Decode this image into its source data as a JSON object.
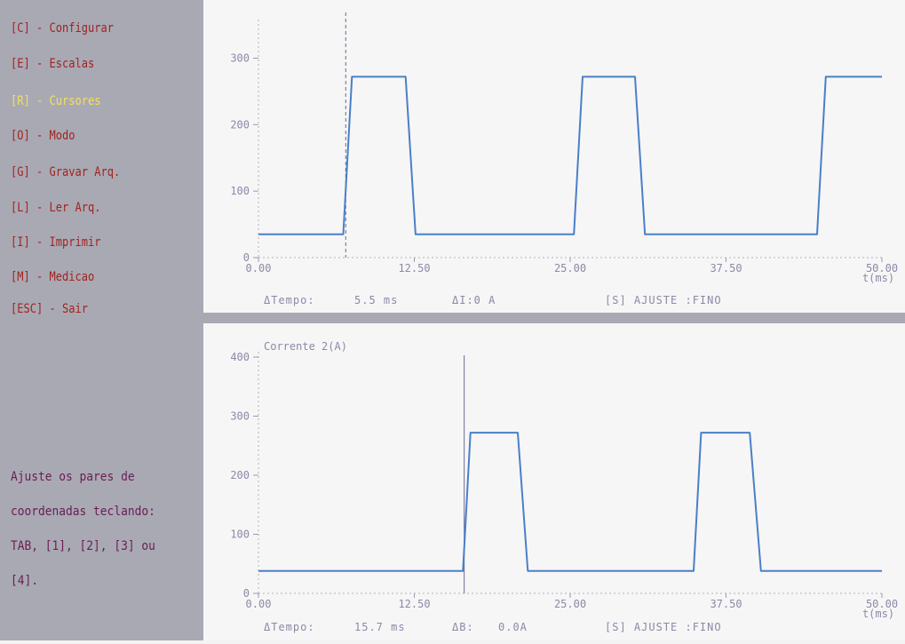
{
  "menu": {
    "items": [
      {
        "key": "[C]",
        "label": "Configurar",
        "text": "[C] - Configurar",
        "active": false
      },
      {
        "key": "[E]",
        "label": "Escalas",
        "text": "[E] - Escalas",
        "active": false
      },
      {
        "key": "[R]",
        "label": "Cursores",
        "text": "[R] - Cursores",
        "active": true
      },
      {
        "key": "[O]",
        "label": "Modo",
        "text": "[O] - Modo",
        "active": false
      },
      {
        "key": "[G]",
        "label": "Gravar Arq.",
        "text": "[G] - Gravar Arq.",
        "active": false
      },
      {
        "key": "[L]",
        "label": "Ler Arq.",
        "text": "[L] - Ler Arq.",
        "active": false
      },
      {
        "key": "[I]",
        "label": "Imprimir",
        "text": "[I] - Imprimir",
        "active": false
      },
      {
        "key": "[M]",
        "label": "Medicao",
        "text": "[M] - Medicao",
        "active": false
      },
      {
        "key": "[ESC]",
        "label": "Sair",
        "text": "[ESC] - Sair",
        "active": false
      }
    ]
  },
  "help": {
    "lines": [
      "Ajuste os pares de",
      "coordenadas teclando:",
      "TAB, [1], [2], [3] ou",
      "[4]."
    ]
  },
  "colors": {
    "sidebar_bg": "#a9a9b4",
    "menu_text": "#a0241f",
    "menu_active": "#f0e060",
    "help_text": "#6a1d55",
    "trace": "#4a7fc8",
    "axis_text": "#8a8aa8",
    "cursor": "#6a6a90"
  },
  "panel1": {
    "title": "",
    "xunit": "t(ms)",
    "status": {
      "dt_label": "ΔTempo:",
      "dt_value": "5.5 ms",
      "dv_label": "ΔI:0 A",
      "mode": "[S] AJUSTE :FINO"
    },
    "chart_data": {
      "type": "line",
      "xlim": [
        0,
        50
      ],
      "ylim": [
        0,
        350
      ],
      "xticks": [
        "0.00",
        "12.50",
        "25.00",
        "37.50",
        "50.00"
      ],
      "yticks": [
        "0",
        "100",
        "200",
        "300"
      ],
      "cursor_x": 7.0,
      "series": [
        {
          "x": [
            0,
            6.8,
            7.5,
            11.8,
            12.6,
            25.3,
            26.0,
            30.2,
            31.0,
            44.8,
            45.5,
            50
          ],
          "y": [
            35,
            35,
            272,
            272,
            35,
            35,
            272,
            272,
            35,
            35,
            272,
            272
          ]
        }
      ]
    }
  },
  "panel2": {
    "title": "Corrente 2(A)",
    "xunit": "t(ms)",
    "status": {
      "dt_label": "ΔTempo:",
      "dt_value": "15.7 ms",
      "dv_label": "ΔB:",
      "dv_value": "0.0A",
      "mode": "[S] AJUSTE :FINO"
    },
    "chart_data": {
      "type": "line",
      "xlim": [
        0,
        50
      ],
      "ylim": [
        0,
        400
      ],
      "xticks": [
        "0.00",
        "12.50",
        "25.00",
        "37.50",
        "50.00"
      ],
      "yticks": [
        "0",
        "100",
        "200",
        "300",
        "400"
      ],
      "cursor_x": 16.5,
      "series": [
        {
          "x": [
            0,
            16.4,
            17.0,
            20.8,
            21.6,
            34.9,
            35.5,
            39.4,
            40.3,
            50
          ],
          "y": [
            38,
            38,
            272,
            272,
            38,
            38,
            272,
            272,
            38,
            38
          ]
        }
      ]
    }
  }
}
